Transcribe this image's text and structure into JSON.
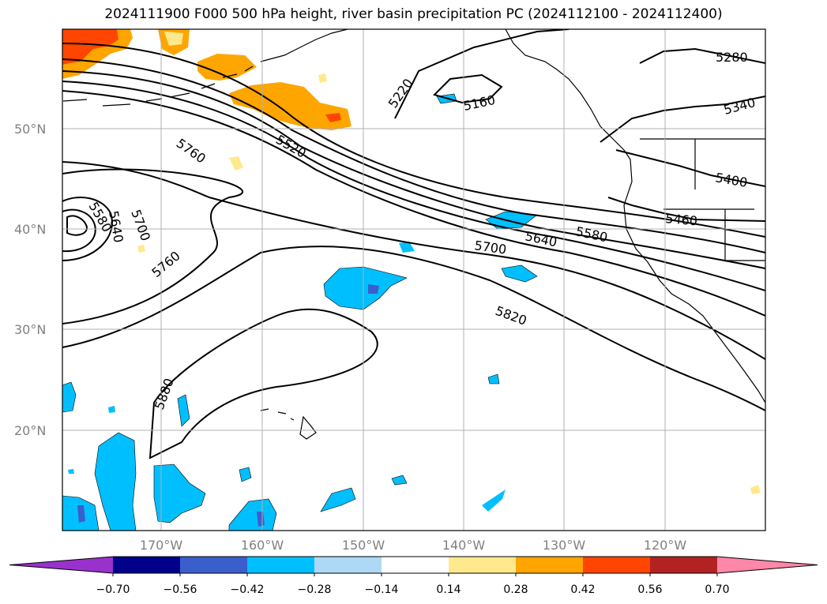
{
  "title": "2024111900 F000 500 hPa height, river basin precipitation PC (2024112100 - 2024112400)",
  "lat_labels": [
    "50°N",
    "40°N",
    "30°N",
    "20°N"
  ],
  "lon_labels": [
    "170°W",
    "160°W",
    "150°W",
    "140°W",
    "130°W",
    "120°W"
  ],
  "contour_labels": [
    "5280",
    "5340",
    "5400",
    "5460",
    "5220",
    "5160",
    "5520",
    "5760",
    "5580",
    "5640",
    "5700",
    "5760",
    "5580",
    "5640",
    "5700",
    "5820",
    "5880"
  ],
  "colorbar": {
    "tick_labels": [
      "−0.70",
      "−0.56",
      "−0.42",
      "−0.28",
      "−0.14",
      "0.14",
      "0.28",
      "0.42",
      "0.56",
      "0.70"
    ],
    "colors": [
      "#9932cc",
      "#00008b",
      "#3a5fcd",
      "#00bfff",
      "#add8f6",
      "#ffffff",
      "#ffe98c",
      "#ffa500",
      "#ff4500",
      "#b22222",
      "#ff88a8"
    ]
  }
}
